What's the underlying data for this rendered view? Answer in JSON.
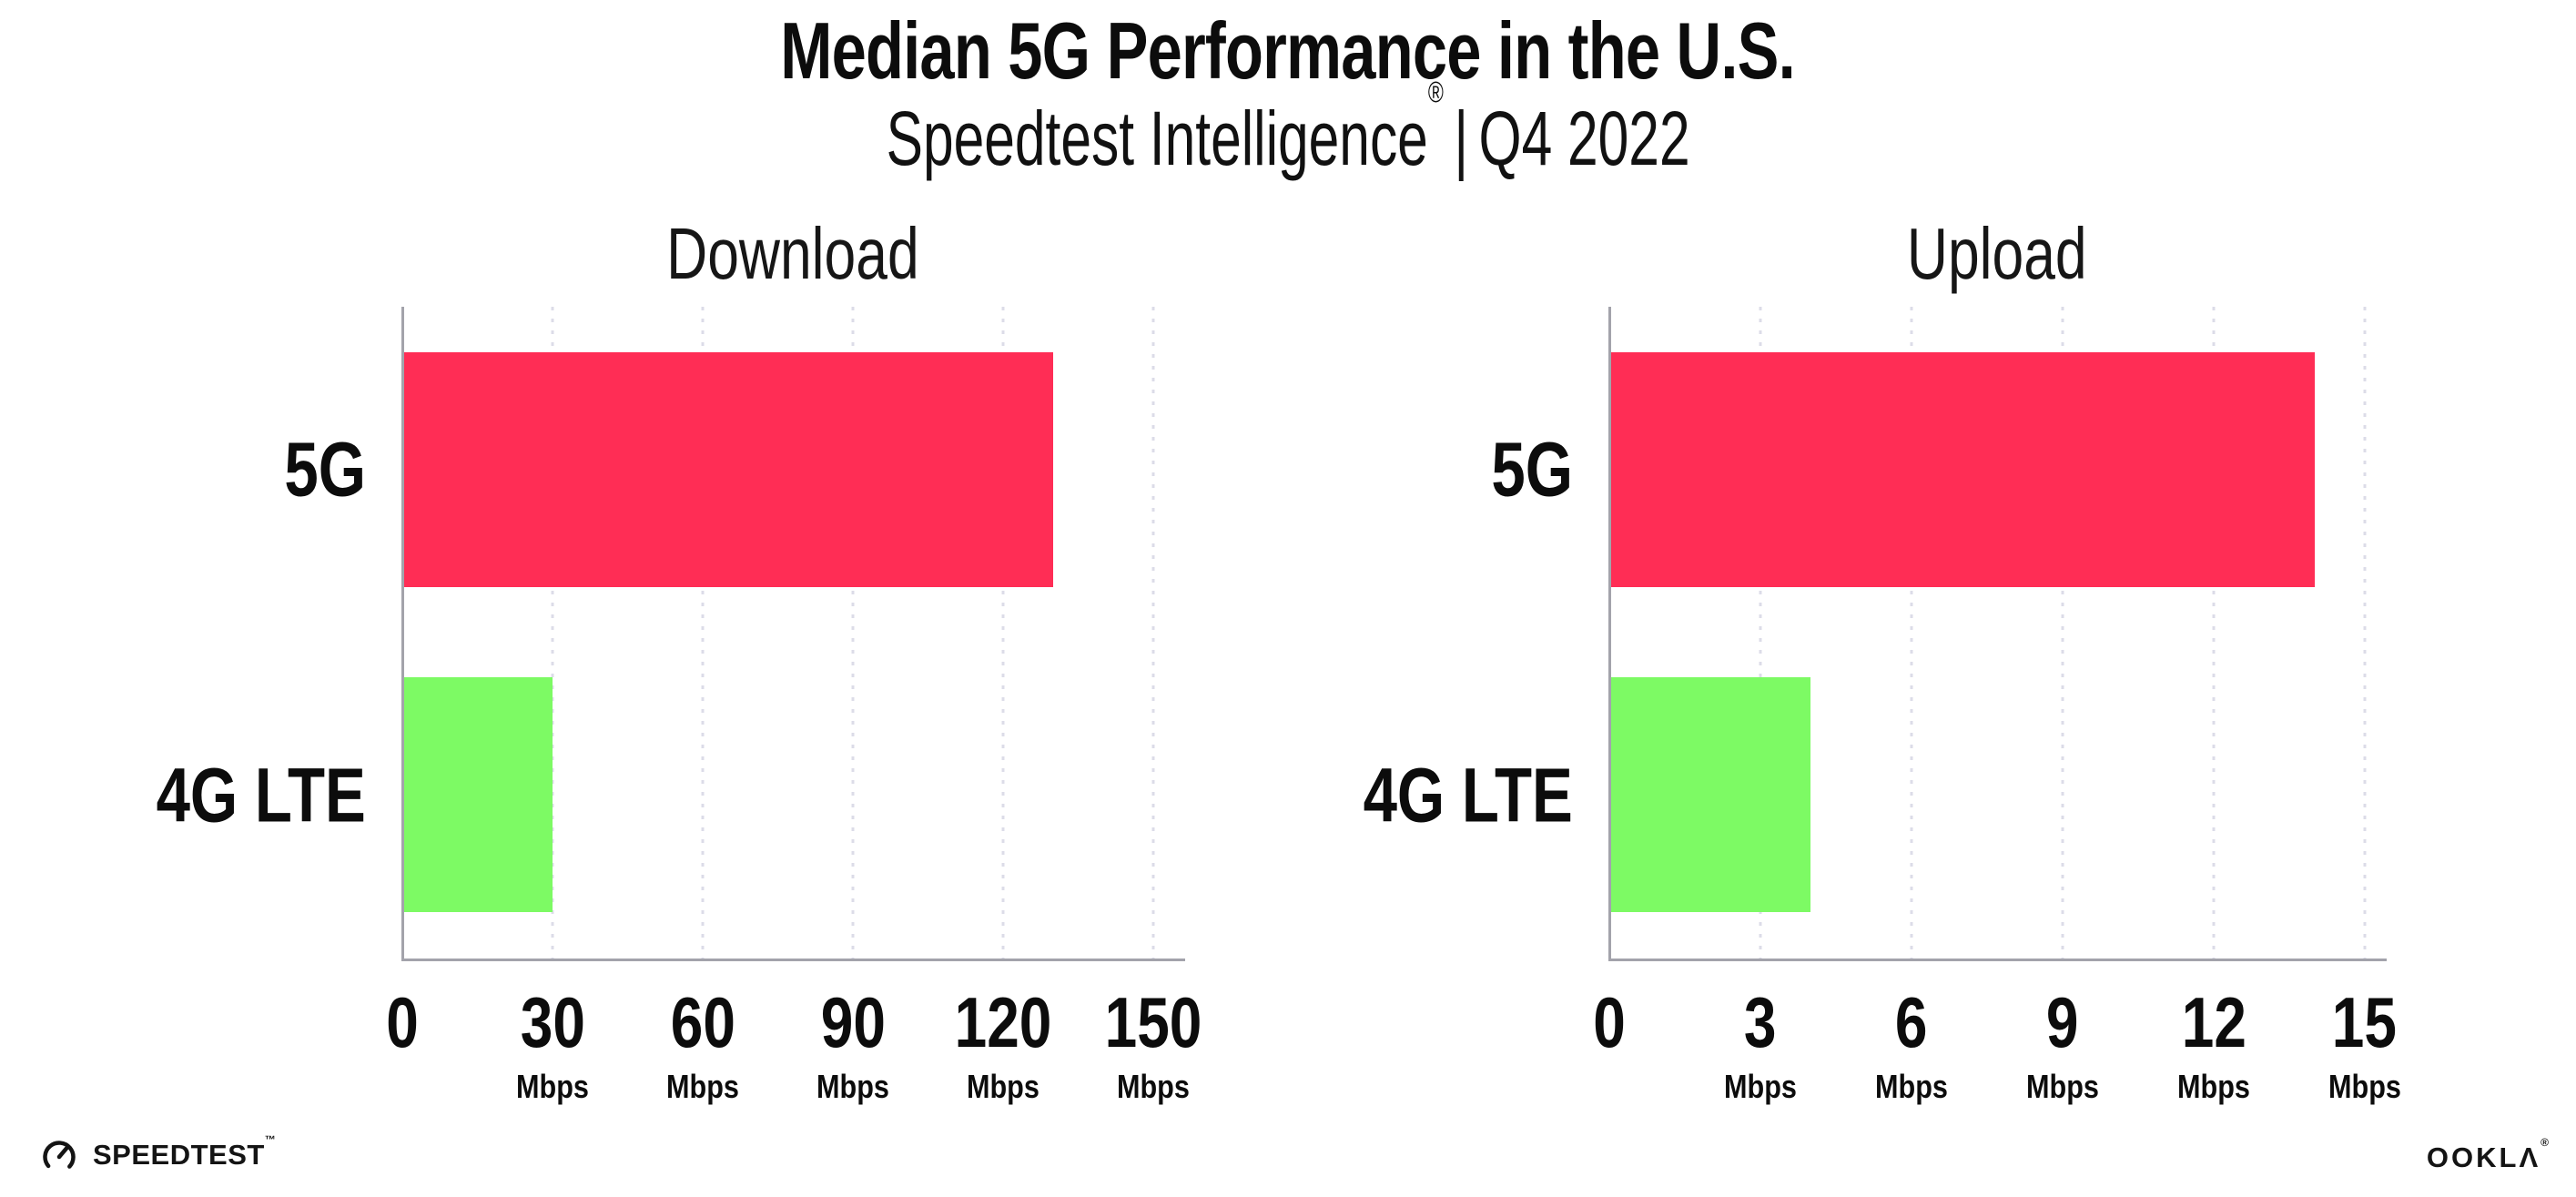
{
  "header": {
    "title": "Median 5G Performance in the U.S.",
    "subtitle": {
      "brand": "Speedtest Intelligence",
      "reg_mark": "®",
      "separator": "|",
      "period": "Q4 2022"
    }
  },
  "chart_data": [
    {
      "type": "bar",
      "orientation": "horizontal",
      "title": "Download",
      "categories": [
        "5G",
        "4G LTE"
      ],
      "values": [
        130,
        30
      ],
      "unit": "Mbps",
      "xticks": [
        0,
        30,
        60,
        90,
        120,
        150
      ],
      "xlim": [
        0,
        156
      ],
      "bar_colors": [
        "#FF2D55",
        "#7DFA64"
      ],
      "grid": "vertical-dotted",
      "legend": false
    },
    {
      "type": "bar",
      "orientation": "horizontal",
      "title": "Upload",
      "categories": [
        "5G",
        "4G LTE"
      ],
      "values": [
        14,
        4
      ],
      "unit": "Mbps",
      "xticks": [
        0,
        3,
        6,
        9,
        12,
        15
      ],
      "xlim": [
        0,
        15.4
      ],
      "bar_colors": [
        "#FF2D55",
        "#7DFA64"
      ],
      "grid": "vertical-dotted",
      "legend": false
    }
  ],
  "footer": {
    "speedtest_label": "SPEEDTEST",
    "speedtest_mark": "™",
    "ookla_label": "OOKLΛ",
    "ookla_mark": "®"
  },
  "colors": {
    "bar_5g": "#FF2D55",
    "bar_4g_lte": "#7DFA64",
    "axis": "#a3a3ab",
    "gridline": "#dcdce8",
    "text": "#0c0c0c",
    "background": "#ffffff"
  }
}
